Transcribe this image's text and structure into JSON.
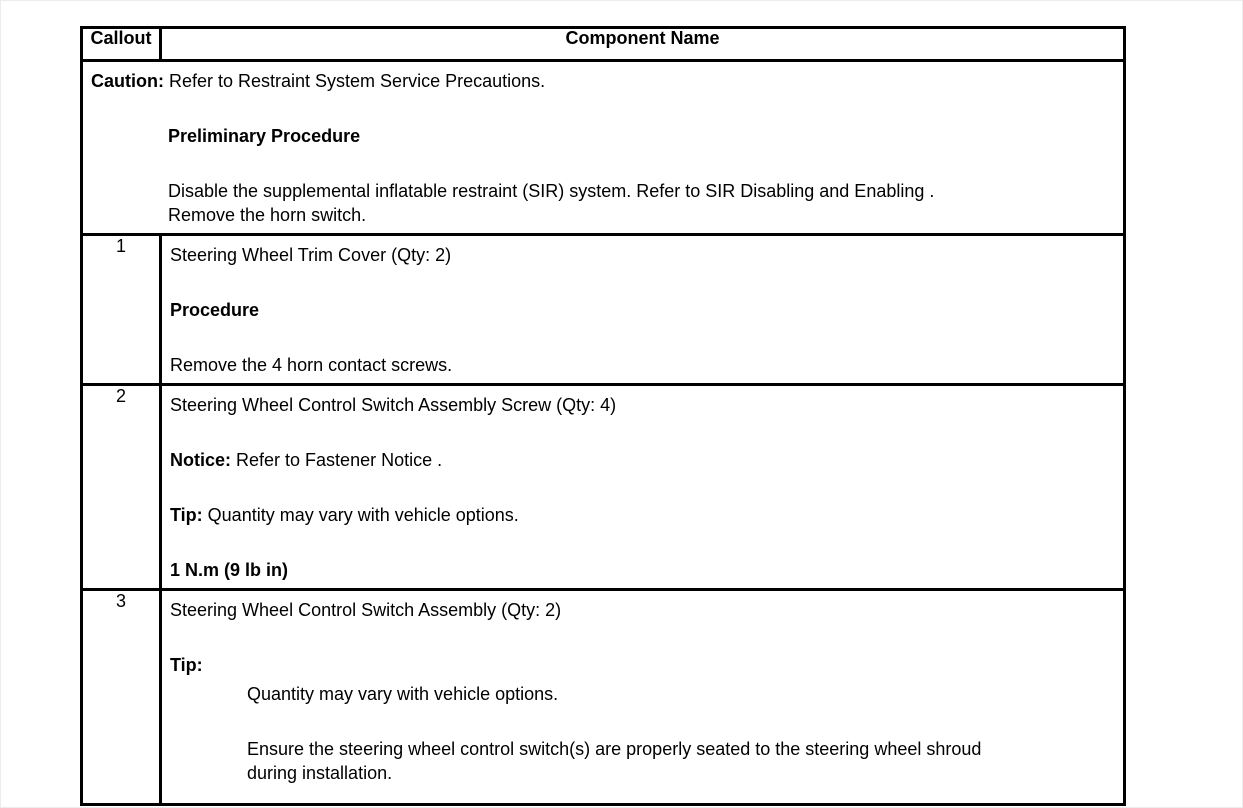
{
  "table": {
    "header": {
      "callout": "Callout",
      "component_name": "Component Name"
    },
    "caution": {
      "label": "Caution:",
      "text": " Refer to Restraint System Service Precautions.",
      "preliminary_heading": "Preliminary Procedure",
      "line1": "Disable the supplemental inflatable restraint (SIR) system. Refer to SIR Disabling and Enabling .",
      "line2": "Remove the horn switch."
    },
    "rows": [
      {
        "callout": "1",
        "title": "Steering Wheel Trim Cover (Qty: 2)",
        "procedure_heading": "Procedure",
        "procedure_text": "Remove the 4 horn contact screws."
      },
      {
        "callout": "2",
        "title": "Steering Wheel Control Switch Assembly Screw (Qty: 4)",
        "notice_label": "Notice:",
        "notice_text": " Refer to Fastener Notice .",
        "tip_label": "Tip:",
        "tip_text": " Quantity may vary with vehicle options.",
        "torque": "1 N.m (9 lb in)"
      },
      {
        "callout": "3",
        "title": "Steering Wheel Control Switch Assembly (Qty: 2)",
        "tip_label": "Tip:",
        "tip_item1": "Quantity may vary with vehicle options.",
        "tip_item2_line1": "Ensure the steering wheel control switch(s) are properly seated to the steering wheel shroud",
        "tip_item2_line2": "during installation."
      }
    ]
  }
}
